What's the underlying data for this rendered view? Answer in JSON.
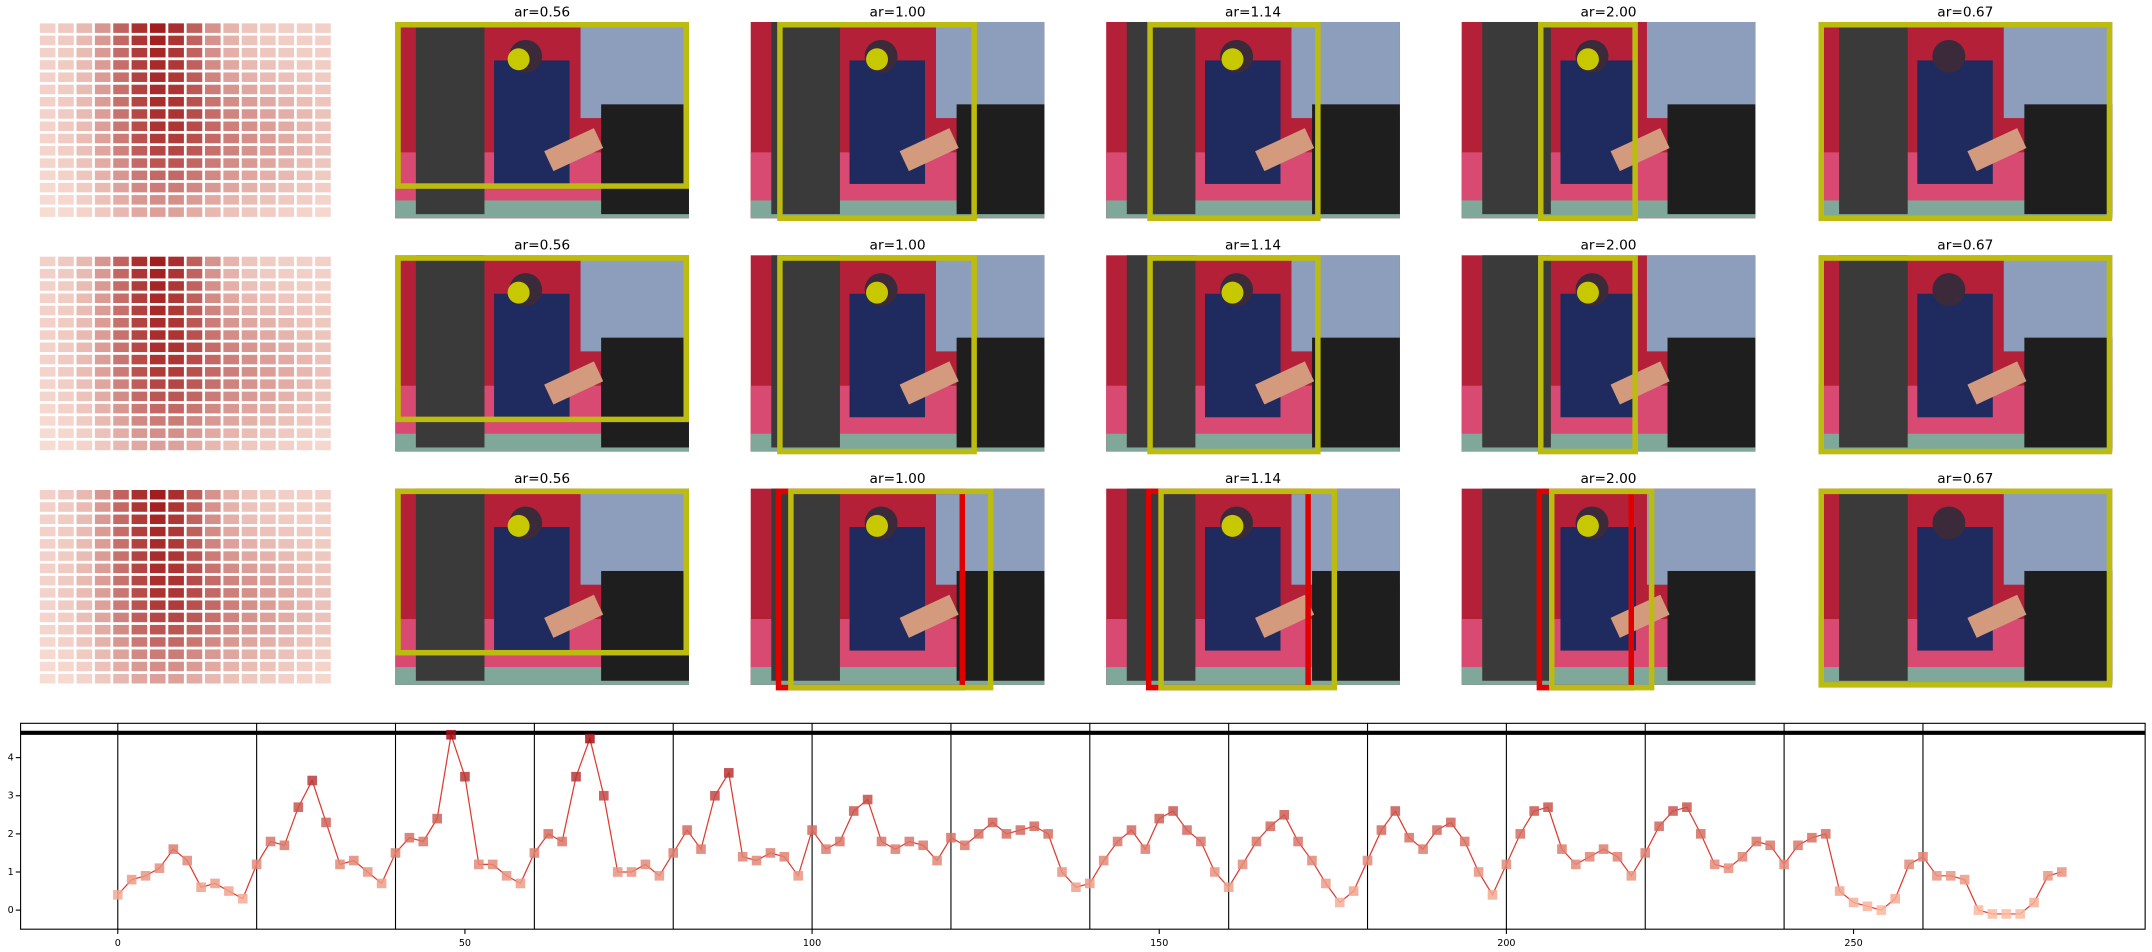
{
  "panel_titles": [
    [
      "ar=0.56",
      "ar=1.00",
      "ar=1.14",
      "ar=2.00",
      "ar=0.67"
    ],
    [
      "ar=0.56",
      "ar=1.00",
      "ar=1.14",
      "ar=2.00",
      "ar=0.67"
    ],
    [
      "ar=0.56",
      "ar=1.00",
      "ar=1.14",
      "ar=2.00",
      "ar=0.67"
    ]
  ],
  "chart_data": {
    "type": "line",
    "x": [
      0,
      2,
      4,
      6,
      8,
      10,
      12,
      14,
      16,
      18,
      20,
      22,
      24,
      26,
      28,
      30,
      32,
      34,
      36,
      38,
      40,
      42,
      44,
      46,
      48,
      50,
      52,
      54,
      56,
      58,
      60,
      62,
      64,
      66,
      68,
      70,
      72,
      74,
      76,
      78,
      80,
      82,
      84,
      86,
      88,
      90,
      92,
      94,
      96,
      98,
      100,
      102,
      104,
      106,
      108,
      110,
      112,
      114,
      116,
      118,
      120,
      122,
      124,
      126,
      128,
      130,
      132,
      134,
      136,
      138,
      140,
      142,
      144,
      146,
      148,
      150,
      152,
      154,
      156,
      158,
      160,
      162,
      164,
      166,
      168,
      170,
      172,
      174,
      176,
      178,
      180,
      182,
      184,
      186,
      188,
      190,
      192,
      194,
      196,
      198,
      200,
      202,
      204,
      206,
      208,
      210,
      212,
      214,
      216,
      218,
      220,
      222,
      224,
      226,
      228,
      230,
      232,
      234,
      236,
      238,
      240,
      242,
      244,
      246,
      248,
      250,
      252,
      254,
      256,
      258,
      260,
      262,
      264,
      266,
      268,
      270,
      272,
      274,
      276,
      278,
      280
    ],
    "series": [
      {
        "color": "#e03a2f",
        "values": [
          0.4,
          0.8,
          0.9,
          1.1,
          1.6,
          1.3,
          0.6,
          0.7,
          0.5,
          0.3,
          1.2,
          1.8,
          1.7,
          2.7,
          3.4,
          2.3,
          1.2,
          1.3,
          1.0,
          0.7,
          1.5,
          1.9,
          1.8,
          2.4,
          4.6,
          3.5,
          1.2,
          1.2,
          0.9,
          0.7,
          1.5,
          2.0,
          1.8,
          3.5,
          4.5,
          3.0,
          1.0,
          1.0,
          1.2,
          0.9,
          1.5,
          2.1,
          1.6,
          3.0,
          3.6,
          1.4,
          1.3,
          1.5,
          1.4,
          0.9,
          2.1,
          1.6,
          1.8,
          2.6,
          2.9,
          1.8,
          1.6,
          1.8,
          1.7,
          1.3,
          1.9,
          1.7,
          2.0,
          2.3,
          2.0,
          2.1,
          2.2,
          2.0,
          1.0,
          0.6,
          0.7,
          1.3,
          1.8,
          2.1,
          1.6,
          2.4,
          2.6,
          2.1,
          1.8,
          1.0,
          0.6,
          1.2,
          1.8,
          2.2,
          2.5,
          1.8,
          1.3,
          0.7,
          0.2,
          0.5,
          1.3,
          2.1,
          2.6,
          1.9,
          1.6,
          2.1,
          2.3,
          1.8,
          1.0,
          0.4,
          1.2,
          2.0,
          2.6,
          2.7,
          1.6,
          1.2,
          1.4,
          1.6,
          1.4,
          0.9,
          1.5,
          2.2,
          2.6,
          2.7,
          2.0,
          1.2,
          1.1,
          1.4,
          1.8,
          1.7,
          1.2,
          1.7,
          1.9,
          2.0,
          0.5,
          0.2,
          0.1,
          0.0,
          0.3,
          1.2,
          1.4,
          0.9,
          0.9,
          0.8,
          0.0,
          -0.1,
          -0.1,
          -0.1,
          0.2,
          0.9,
          1.0
        ]
      }
    ],
    "marker_colors": [
      "#fcbba1",
      "#a50f15"
    ],
    "vlines": [
      0,
      20,
      40,
      60,
      80,
      100,
      120,
      140,
      160,
      180,
      200,
      220,
      240,
      260
    ],
    "hline": 4.65,
    "xlim": [
      -14,
      292
    ],
    "ylim": [
      -0.5,
      4.9
    ],
    "xticks": [
      0,
      50,
      100,
      150,
      200,
      250
    ],
    "yticks": [
      0,
      1,
      2,
      3,
      4
    ]
  }
}
